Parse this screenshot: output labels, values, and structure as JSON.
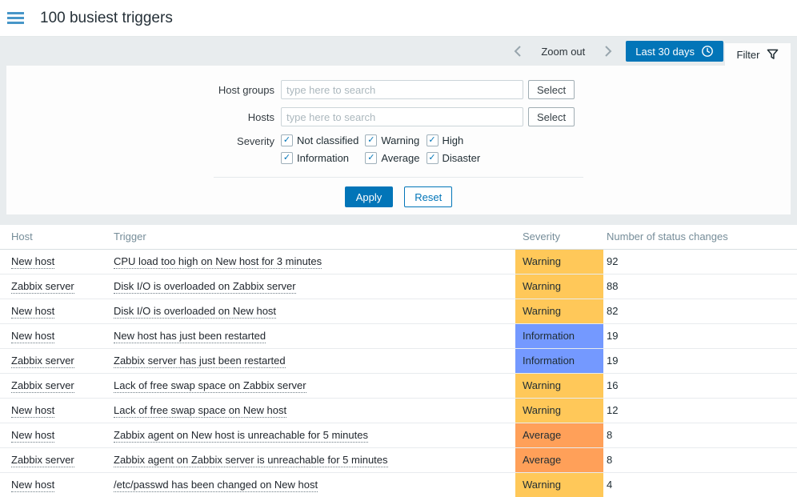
{
  "header": {
    "title": "100 busiest triggers"
  },
  "timebar": {
    "zoom_out_label": "Zoom out",
    "range_label": "Last 30 days",
    "filter_label": "Filter"
  },
  "filter": {
    "host_groups_label": "Host groups",
    "hosts_label": "Hosts",
    "search_placeholder": "type here to search",
    "select_label": "Select",
    "severity_label": "Severity",
    "severities": [
      {
        "label": "Not classified",
        "checked": true
      },
      {
        "label": "Warning",
        "checked": true
      },
      {
        "label": "High",
        "checked": true
      },
      {
        "label": "Information",
        "checked": true
      },
      {
        "label": "Average",
        "checked": true
      },
      {
        "label": "Disaster",
        "checked": true
      }
    ],
    "apply_label": "Apply",
    "reset_label": "Reset"
  },
  "table": {
    "columns": [
      "Host",
      "Trigger",
      "Severity",
      "Number of status changes"
    ],
    "rows": [
      {
        "host": "New host",
        "trigger": "CPU load too high on New host for 3 minutes",
        "severity": "Warning",
        "changes": "92"
      },
      {
        "host": "Zabbix server",
        "trigger": "Disk I/O is overloaded on Zabbix server",
        "severity": "Warning",
        "changes": "88"
      },
      {
        "host": "New host",
        "trigger": "Disk I/O is overloaded on New host",
        "severity": "Warning",
        "changes": "82"
      },
      {
        "host": "New host",
        "trigger": "New host has just been restarted",
        "severity": "Information",
        "changes": "19"
      },
      {
        "host": "Zabbix server",
        "trigger": "Zabbix server has just been restarted",
        "severity": "Information",
        "changes": "19"
      },
      {
        "host": "Zabbix server",
        "trigger": "Lack of free swap space on Zabbix server",
        "severity": "Warning",
        "changes": "16"
      },
      {
        "host": "New host",
        "trigger": "Lack of free swap space on New host",
        "severity": "Warning",
        "changes": "12"
      },
      {
        "host": "New host",
        "trigger": "Zabbix agent on New host is unreachable for 5 minutes",
        "severity": "Average",
        "changes": "8"
      },
      {
        "host": "Zabbix server",
        "trigger": "Zabbix agent on Zabbix server is unreachable for 5 minutes",
        "severity": "Average",
        "changes": "8"
      },
      {
        "host": "New host",
        "trigger": "/etc/passwd has been changed on New host",
        "severity": "Warning",
        "changes": "4"
      }
    ]
  },
  "colors": {
    "accent": "#0275b8",
    "severity": {
      "Warning": "#ffc859",
      "Information": "#7499ff",
      "Average": "#ffa059"
    }
  }
}
